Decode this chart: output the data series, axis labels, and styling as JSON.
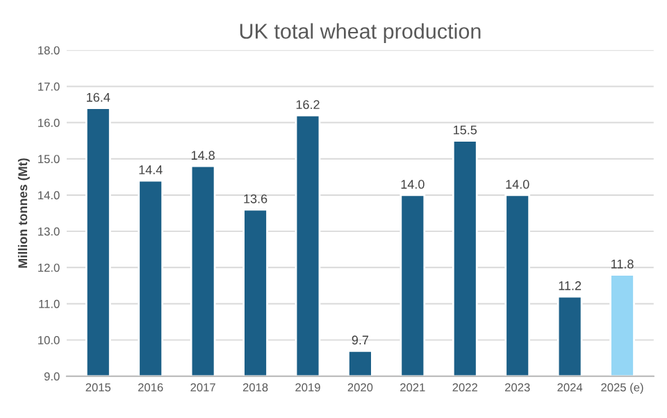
{
  "chart_data": {
    "type": "bar",
    "title": "UK total wheat production",
    "ylabel": "Million tonnes (Mt)",
    "categories": [
      "2015",
      "2016",
      "2017",
      "2018",
      "2019",
      "2020",
      "2021",
      "2022",
      "2023",
      "2024",
      "2025 (e)"
    ],
    "values": [
      16.4,
      14.4,
      14.8,
      13.6,
      16.2,
      9.7,
      14.0,
      15.5,
      14.0,
      11.2,
      11.8
    ],
    "colors": [
      "#1b5f87",
      "#1b5f87",
      "#1b5f87",
      "#1b5f87",
      "#1b5f87",
      "#1b5f87",
      "#1b5f87",
      "#1b5f87",
      "#1b5f87",
      "#1b5f87",
      "#94d6f5"
    ],
    "ylim": [
      9,
      18
    ],
    "yticks": [
      {
        "value": 9,
        "label": "9.0"
      },
      {
        "value": 10,
        "label": "10.0"
      },
      {
        "value": 11,
        "label": "11.0"
      },
      {
        "value": 12,
        "label": "12.0"
      },
      {
        "value": 13,
        "label": "13.0"
      },
      {
        "value": 14,
        "label": "14.0"
      },
      {
        "value": 15,
        "label": "15.0"
      },
      {
        "value": 16,
        "label": "16.0"
      },
      {
        "value": 17,
        "label": "17.0"
      },
      {
        "value": 18,
        "label": "18.0"
      }
    ],
    "value_labels": [
      "16.4",
      "14.4",
      "14.8",
      "13.6",
      "16.2",
      "9.7",
      "14.0",
      "15.5",
      "14.0",
      "11.2",
      "11.8"
    ],
    "grid": "y"
  }
}
